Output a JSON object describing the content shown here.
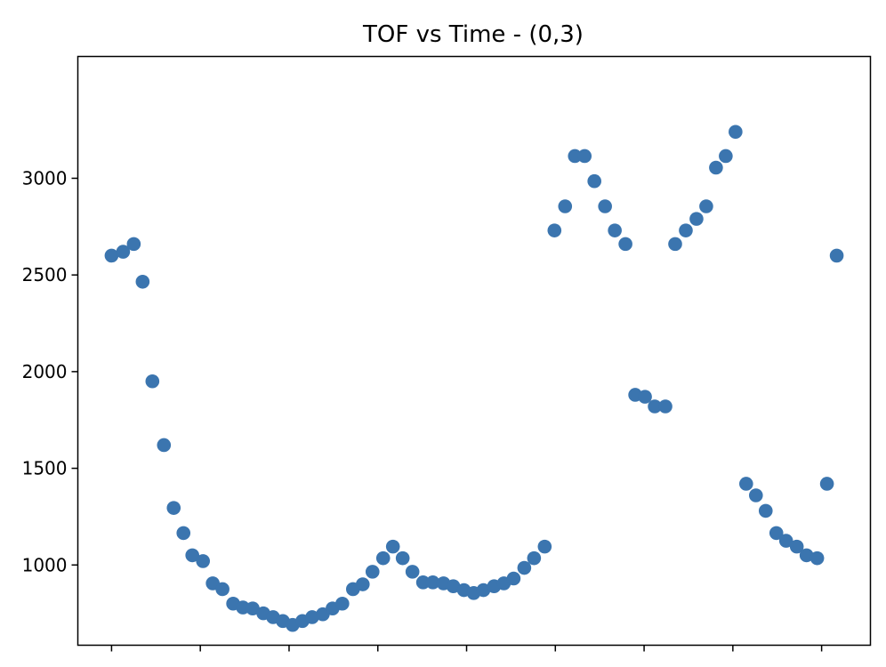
{
  "chart_data": {
    "type": "scatter",
    "title": "TOF vs Time - (0,3)",
    "xlabel": "",
    "ylabel": "",
    "xlim": [
      -0.38,
      8.55
    ],
    "ylim": [
      585,
      3630
    ],
    "y_ticks": [
      1000,
      1500,
      2000,
      2500,
      3000
    ],
    "y_tick_labels": [
      "1000",
      "1500",
      "2000",
      "2500",
      "3000"
    ],
    "x_ticks": [
      0,
      1,
      2,
      3,
      4,
      5,
      6,
      7,
      8
    ],
    "x_tick_labels": [
      "",
      "",
      "",
      "",
      "",
      "",
      "",
      "",
      ""
    ],
    "grid": false,
    "legend": false,
    "marker_color": "#3b75af",
    "series": [
      {
        "x": [
          0.0,
          0.13,
          0.25,
          0.35,
          0.46,
          0.59,
          0.7,
          0.81,
          0.91,
          1.03,
          1.14,
          1.25,
          1.37,
          1.48,
          1.59,
          1.71,
          1.82,
          1.93,
          2.04,
          2.15,
          2.26,
          2.38,
          2.49,
          2.6,
          2.72,
          2.83,
          2.94,
          3.06,
          3.17,
          3.28,
          3.39,
          3.51,
          3.62,
          3.74,
          3.85,
          3.97,
          4.08,
          4.19,
          4.31,
          4.42,
          4.53,
          4.65,
          4.76,
          4.88,
          4.99,
          5.11,
          5.22,
          5.33,
          5.44,
          5.56,
          5.67,
          5.79,
          5.9,
          6.01,
          6.12,
          6.24,
          6.35,
          6.47,
          6.59,
          6.7,
          6.81,
          6.92,
          7.03,
          7.15,
          7.26,
          7.37,
          7.49,
          7.6,
          7.72,
          7.83,
          7.95,
          8.06,
          8.17
        ],
        "y": [
          2600,
          2620,
          2660,
          2465,
          1950,
          1620,
          1295,
          1165,
          1050,
          1020,
          905,
          875,
          800,
          780,
          775,
          750,
          730,
          710,
          690,
          710,
          730,
          745,
          775,
          800,
          875,
          900,
          965,
          1035,
          1095,
          1035,
          965,
          910,
          910,
          905,
          890,
          870,
          855,
          870,
          890,
          905,
          930,
          985,
          1035,
          1095,
          2730,
          2855,
          3115,
          3115,
          2985,
          2855,
          2730,
          2660,
          1880,
          1870,
          1820,
          1820,
          2660,
          2730,
          2790,
          2855,
          3055,
          3115,
          3240,
          1420,
          1360,
          1280,
          1165,
          1125,
          1095,
          1050,
          1035,
          1420,
          2600
        ]
      }
    ]
  }
}
